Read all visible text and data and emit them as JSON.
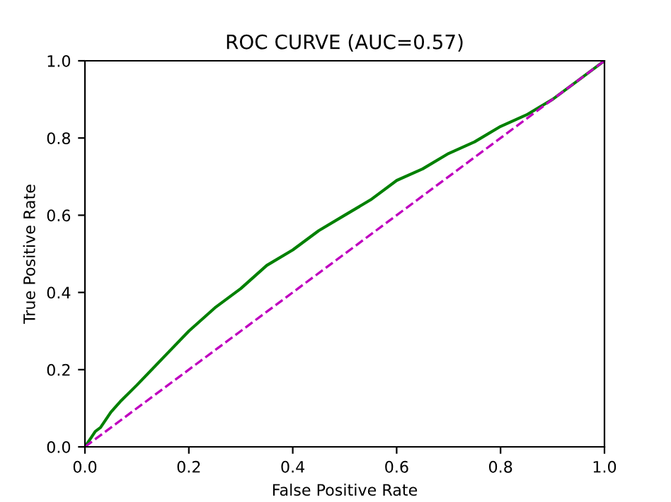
{
  "chart_data": {
    "type": "line",
    "title": "ROC CURVE (AUC=0.57)",
    "xlabel": "False Positive Rate",
    "ylabel": "True Positive Rate",
    "xlim": [
      0.0,
      1.0
    ],
    "ylim": [
      0.0,
      1.0
    ],
    "xticks": [
      {
        "value": 0,
        "label": "0.0"
      },
      0.2,
      0.4,
      0.6,
      0.8,
      {
        "value": 1,
        "label": "1.0"
      }
    ],
    "yticks": [
      {
        "value": 0,
        "label": "0.0"
      },
      0.2,
      0.4,
      0.6,
      0.8,
      {
        "value": 1,
        "label": "1.0"
      }
    ],
    "grid": false,
    "legend": false,
    "series": [
      {
        "color": "#008000",
        "line_style": "solid",
        "x": [
          0,
          0.01,
          0.02,
          0.03,
          0.05,
          0.07,
          0.1,
          0.15,
          0.2,
          0.25,
          0.3,
          0.35,
          0.4,
          0.45,
          0.5,
          0.55,
          0.6,
          0.65,
          0.7,
          0.75,
          0.8,
          0.85,
          0.9,
          0.95,
          1.0
        ],
        "values": [
          0,
          0.02,
          0.04,
          0.05,
          0.09,
          0.12,
          0.16,
          0.23,
          0.3,
          0.36,
          0.41,
          0.47,
          0.51,
          0.56,
          0.6,
          0.64,
          0.69,
          0.72,
          0.76,
          0.79,
          0.83,
          0.86,
          0.9,
          0.95,
          1.0
        ]
      },
      {
        "color": "#bf00bf",
        "line_style": "dashed",
        "x": [
          0,
          1
        ],
        "values": [
          0,
          1
        ]
      }
    ]
  }
}
